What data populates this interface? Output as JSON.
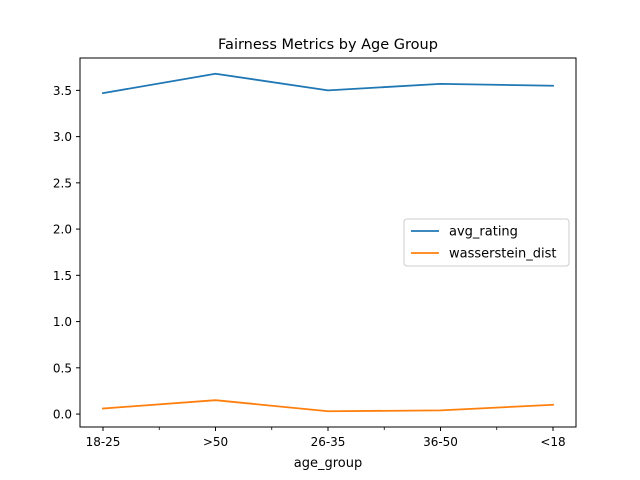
{
  "chart_data": {
    "type": "line",
    "title": "Fairness Metrics by Age Group",
    "xlabel": "age_group",
    "ylabel": "",
    "categories": [
      "18-25",
      ">50",
      "26-35",
      "36-50",
      "<18"
    ],
    "ylim": [
      -0.14,
      3.85
    ],
    "yticks": [
      0.0,
      0.5,
      1.0,
      1.5,
      2.0,
      2.5,
      3.0,
      3.5
    ],
    "ytick_labels": [
      "0.0",
      "0.5",
      "1.0",
      "1.5",
      "2.0",
      "2.5",
      "3.0",
      "3.5"
    ],
    "grid": false,
    "legend_position": "center-right",
    "series": [
      {
        "name": "avg_rating",
        "color": "#1f77b4",
        "values": [
          3.47,
          3.68,
          3.5,
          3.57,
          3.55
        ]
      },
      {
        "name": "wasserstein_dist",
        "color": "#ff7f0e",
        "values": [
          0.06,
          0.15,
          0.03,
          0.04,
          0.1
        ]
      }
    ]
  }
}
